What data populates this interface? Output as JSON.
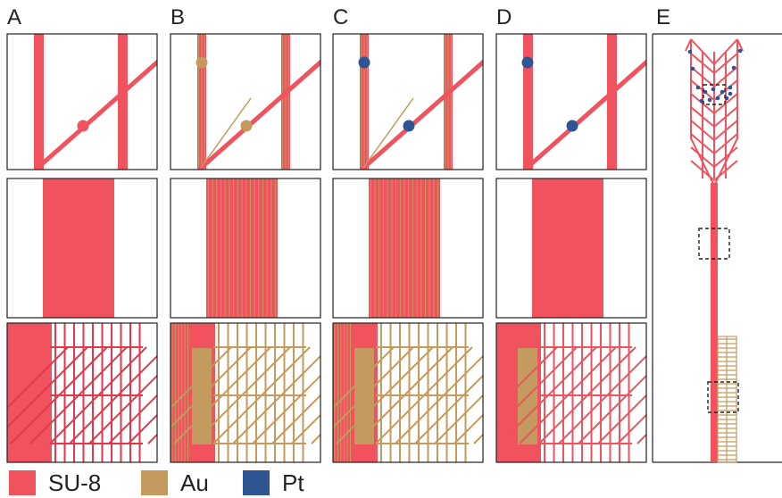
{
  "panels": [
    {
      "label": "A",
      "conductor": "none",
      "electrode": "SU-8"
    },
    {
      "label": "B",
      "conductor": "Au",
      "electrode": "Au"
    },
    {
      "label": "C",
      "conductor": "Au",
      "electrode": "Pt"
    },
    {
      "label": "D",
      "conductor": "none",
      "electrode": "Pt"
    },
    {
      "label": "E"
    }
  ],
  "legend": [
    {
      "label": "SU-8",
      "color": "#f0525e"
    },
    {
      "label": "Au",
      "color": "#c49a5e"
    },
    {
      "label": "Pt",
      "color": "#2d5592"
    }
  ],
  "colors": {
    "su8": "#f0525e",
    "au": "#c49a5e",
    "pt": "#2d5592",
    "outline": "#222222"
  }
}
